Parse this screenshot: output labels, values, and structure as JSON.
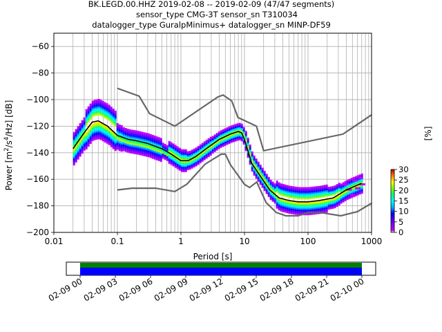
{
  "chart_data": [
    {
      "type": "heatmap",
      "title_lines": [
        "BK.LEGD.00.HHZ   2019-02-08 -- 2019-02-09  (47/47 segments)",
        "sensor_type CMG-3T sensor_sn T310034",
        "datalogger_type GuralpMinimus+ datalogger_sn MINP-DF59"
      ],
      "xlabel": "Period [s]",
      "ylabel_parts": [
        "Power [m",
        "2",
        "/s",
        "4",
        "/Hz] [dB]"
      ],
      "x_scale": "log",
      "xlim": [
        0.01,
        1000
      ],
      "ylim": [
        -200,
        -50
      ],
      "x_ticks": [
        0.01,
        0.1,
        1,
        10,
        100,
        1000
      ],
      "x_tick_labels": [
        "0.01",
        "0.1",
        "1",
        "10",
        "100",
        "1000"
      ],
      "y_ticks": [
        -200,
        -180,
        -160,
        -140,
        -120,
        -100,
        -80,
        -60
      ],
      "y_tick_labels": [
        "−200",
        "−180",
        "−160",
        "−140",
        "−120",
        "−100",
        "−80",
        "−60"
      ],
      "grid": true,
      "colorbar": {
        "label": "[%]",
        "range": [
          0,
          30
        ],
        "ticks": [
          0,
          5,
          10,
          15,
          20,
          25,
          30
        ],
        "tick_labels": [
          "0",
          "5",
          "10",
          "15",
          "20",
          "25",
          "30"
        ]
      },
      "mean_curve": {
        "x": [
          0.02,
          0.03,
          0.04,
          0.05,
          0.07,
          0.1,
          0.15,
          0.2,
          0.3,
          0.5,
          0.7,
          1.0,
          1.3,
          1.7,
          2.5,
          4,
          6,
          8,
          9,
          10,
          13,
          18,
          25,
          35,
          50,
          70,
          100,
          150,
          250,
          400,
          700
        ],
        "y": [
          -137,
          -125,
          -117,
          -116,
          -120,
          -127,
          -130,
          -131,
          -133,
          -137,
          -141,
          -146,
          -146,
          -143,
          -137,
          -130,
          -126,
          -124,
          -125,
          -130,
          -148,
          -158,
          -168,
          -174,
          -176,
          -177,
          -177,
          -176,
          -174,
          -168,
          -163
        ]
      },
      "noise_model_high": {
        "x": [
          0.1,
          0.22,
          0.32,
          0.8,
          3.8,
          4.6,
          6.3,
          7.9,
          15.4,
          20,
          354.8,
          1000
        ],
        "y": [
          -91.5,
          -97.4,
          -110.5,
          -120,
          -98,
          -96.5,
          -101,
          -113.5,
          -120,
          -138.5,
          -126,
          -111.5
        ]
      },
      "noise_model_low": {
        "x": [
          0.1,
          0.17,
          0.4,
          0.8,
          1.24,
          2.4,
          4.3,
          5,
          6,
          10,
          12,
          15.6,
          21.9,
          31.6,
          45,
          70,
          101,
          154,
          328,
          600,
          1000
        ],
        "y": [
          -168,
          -166.7,
          -166.7,
          -169.2,
          -163.7,
          -148.6,
          -141.1,
          -141.1,
          -149,
          -163.8,
          -166.2,
          -162.1,
          -177.5,
          -185,
          -187.5,
          -187.5,
          -185,
          -185,
          -187.5,
          -184.4,
          -178
        ]
      }
    },
    {
      "type": "bar",
      "x_tick_labels": [
        "02-09 00",
        "02-09 03",
        "02-09 06",
        "02-09 09",
        "02-09 12",
        "02-09 15",
        "02-09 18",
        "02-09 21",
        "02-10 00"
      ],
      "coverage_hours": [
        0,
        24
      ],
      "colors": {
        "coverage": "#0000ff",
        "processed": "#008000"
      }
    }
  ]
}
